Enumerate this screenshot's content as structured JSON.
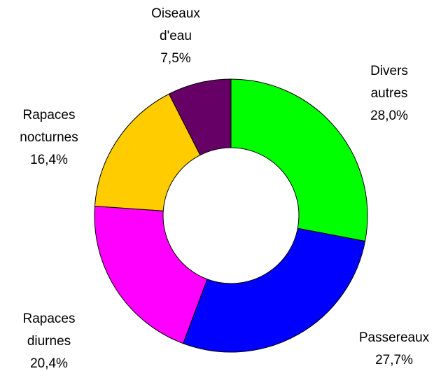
{
  "chart_data": {
    "type": "donut",
    "categories": [
      "Divers autres",
      "Passereaux",
      "Rapaces diurnes",
      "Rapaces nocturnes",
      "Oiseaux d'eau"
    ],
    "values": [
      28.0,
      27.7,
      20.4,
      16.4,
      7.5
    ],
    "value_labels": [
      "28,0%",
      "27,7%",
      "20,4%",
      "16,4%",
      "7,5%"
    ],
    "colors": [
      "#00ff00",
      "#0000ff",
      "#ff00ff",
      "#ffcc00",
      "#660066"
    ]
  }
}
